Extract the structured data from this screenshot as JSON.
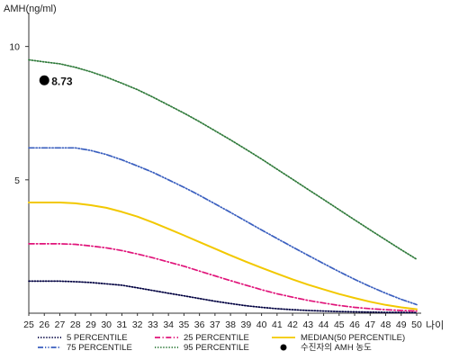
{
  "chart_data": {
    "type": "line",
    "ylabel": "AMH(ng/ml)",
    "xlabel": "나이",
    "xlim": [
      25,
      50
    ],
    "ylim": [
      0,
      11
    ],
    "x_ticks": [
      25,
      26,
      27,
      28,
      29,
      30,
      31,
      32,
      33,
      34,
      35,
      36,
      37,
      38,
      39,
      40,
      41,
      42,
      43,
      44,
      45,
      46,
      47,
      48,
      49,
      50
    ],
    "y_ticks": [
      5,
      10
    ],
    "x": [
      25,
      26,
      27,
      28,
      29,
      30,
      31,
      32,
      33,
      34,
      35,
      36,
      37,
      38,
      39,
      40,
      41,
      42,
      43,
      44,
      45,
      46,
      47,
      48,
      49,
      50
    ],
    "series": [
      {
        "name": "5 PERCENTILE",
        "color": "#000040",
        "dash": "dotted",
        "values": [
          1.2,
          1.2,
          1.2,
          1.18,
          1.15,
          1.1,
          1.05,
          0.95,
          0.85,
          0.75,
          0.65,
          0.55,
          0.45,
          0.36,
          0.28,
          0.22,
          0.17,
          0.13,
          0.1,
          0.08,
          0.06,
          0.05,
          0.04,
          0.03,
          0.03,
          0.02
        ]
      },
      {
        "name": "25 PERCENTILE",
        "color": "#e0147a",
        "dash": "dashdot",
        "values": [
          2.6,
          2.6,
          2.6,
          2.58,
          2.52,
          2.45,
          2.35,
          2.22,
          2.08,
          1.92,
          1.76,
          1.58,
          1.4,
          1.22,
          1.05,
          0.88,
          0.73,
          0.6,
          0.48,
          0.38,
          0.29,
          0.22,
          0.17,
          0.13,
          0.1,
          0.08
        ]
      },
      {
        "name": "MEDIAN(50 PERCENTILE)",
        "color": "#f2c800",
        "dash": "solid",
        "values": [
          4.15,
          4.15,
          4.15,
          4.12,
          4.05,
          3.95,
          3.8,
          3.62,
          3.4,
          3.16,
          2.92,
          2.67,
          2.42,
          2.17,
          1.93,
          1.7,
          1.48,
          1.27,
          1.07,
          0.89,
          0.72,
          0.57,
          0.43,
          0.31,
          0.22,
          0.15
        ]
      },
      {
        "name": "75 PERCENTILE",
        "color": "#3a5fbf",
        "dash": "dashdotdot",
        "values": [
          6.2,
          6.2,
          6.2,
          6.2,
          6.1,
          5.95,
          5.75,
          5.52,
          5.28,
          5.0,
          4.72,
          4.42,
          4.1,
          3.78,
          3.45,
          3.12,
          2.8,
          2.48,
          2.17,
          1.86,
          1.56,
          1.27,
          1.0,
          0.75,
          0.52,
          0.32
        ]
      },
      {
        "name": "95 PERCENTILE",
        "color": "#2f7a3a",
        "dash": "dotted",
        "values": [
          9.5,
          9.42,
          9.35,
          9.22,
          9.05,
          8.85,
          8.62,
          8.38,
          8.1,
          7.8,
          7.5,
          7.18,
          6.84,
          6.5,
          6.14,
          5.78,
          5.4,
          5.02,
          4.64,
          4.26,
          3.88,
          3.5,
          3.12,
          2.75,
          2.38,
          2.02
        ]
      }
    ],
    "points": [
      {
        "name": "수진자의 AMH 농도",
        "x": 26,
        "y": 8.73,
        "label": "8.73"
      }
    ],
    "legend_position": "bottom",
    "grid": false
  }
}
